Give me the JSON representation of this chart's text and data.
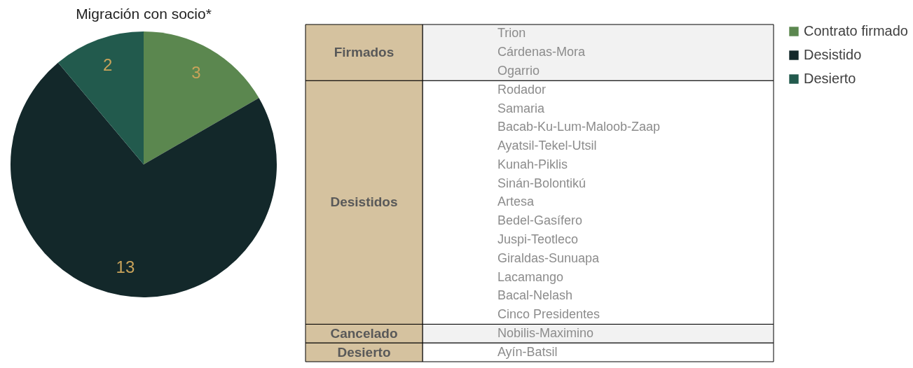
{
  "chart_data": [
    {
      "type": "pie",
      "title": "Migración con socio*",
      "categories": [
        "Contrato firmado",
        "Desistido",
        "Desierto"
      ],
      "values": [
        3,
        13,
        2
      ],
      "colors": [
        "#5b874f",
        "#13282a",
        "#225a4d"
      ],
      "data_labels": true,
      "legend": "right"
    },
    {
      "type": "other",
      "categories": [
        "Firmados",
        "Desistidos",
        "Cancelado",
        "Desierto"
      ],
      "cell_labels": [
        [
          "Trion",
          "Cárdenas-Mora",
          "Ogarrio"
        ],
        [
          "Rodador",
          "Samaria",
          "Bacab-Ku-Lum-Maloob-Zaap",
          "Ayatsil-Tekel-Utsil",
          "Kunah-Piklis",
          "Sinán-Bolontikú",
          "Artesa",
          "Bedel-Gasífero",
          "Juspi-Teotleco",
          "Giraldas-Sunuapa",
          "Lacamango",
          "Bacal-Nelash",
          "Cinco Presidentes"
        ],
        [
          "Nobilis-Maximino"
        ],
        [
          "Ayín-Batsil"
        ]
      ]
    }
  ]
}
